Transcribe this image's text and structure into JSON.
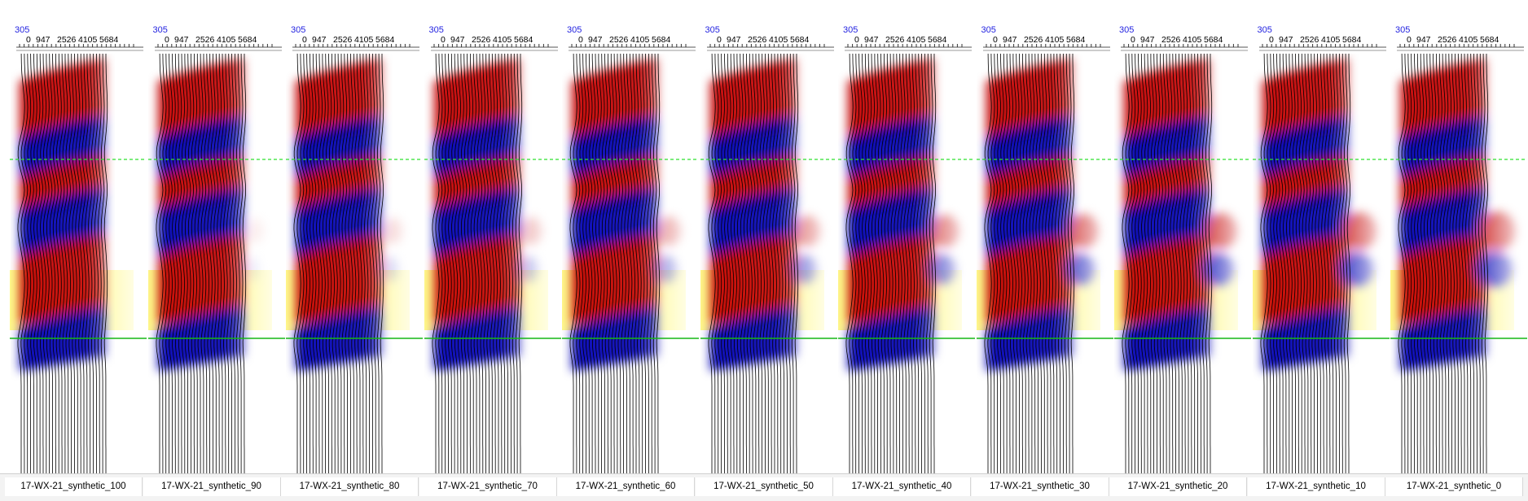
{
  "colors": {
    "positive": "#c40000",
    "negative": "#0000b4",
    "horizon_top": "#2ee02e",
    "horizon_bottom": "#15b815",
    "zone_highlight": "#fff98a",
    "wiggle": "#000000",
    "header_number": "#1f1fe0"
  },
  "header_number": "305",
  "offset_ticks": [
    "0",
    "947",
    "2526",
    "4105",
    "5684"
  ],
  "panels": [
    {
      "label": "17-WX-21_synthetic_100",
      "weight": 1.0
    },
    {
      "label": "17-WX-21_synthetic_90",
      "weight": 0.9
    },
    {
      "label": "17-WX-21_synthetic_80",
      "weight": 0.8
    },
    {
      "label": "17-WX-21_synthetic_70",
      "weight": 0.7
    },
    {
      "label": "17-WX-21_synthetic_60",
      "weight": 0.6
    },
    {
      "label": "17-WX-21_synthetic_50",
      "weight": 0.5
    },
    {
      "label": "17-WX-21_synthetic_40",
      "weight": 0.4
    },
    {
      "label": "17-WX-21_synthetic_30",
      "weight": 0.3
    },
    {
      "label": "17-WX-21_synthetic_20",
      "weight": 0.2
    },
    {
      "label": "17-WX-21_synthetic_10",
      "weight": 0.1
    },
    {
      "label": "17-WX-21_synthetic_0",
      "weight": 0.0
    }
  ]
}
